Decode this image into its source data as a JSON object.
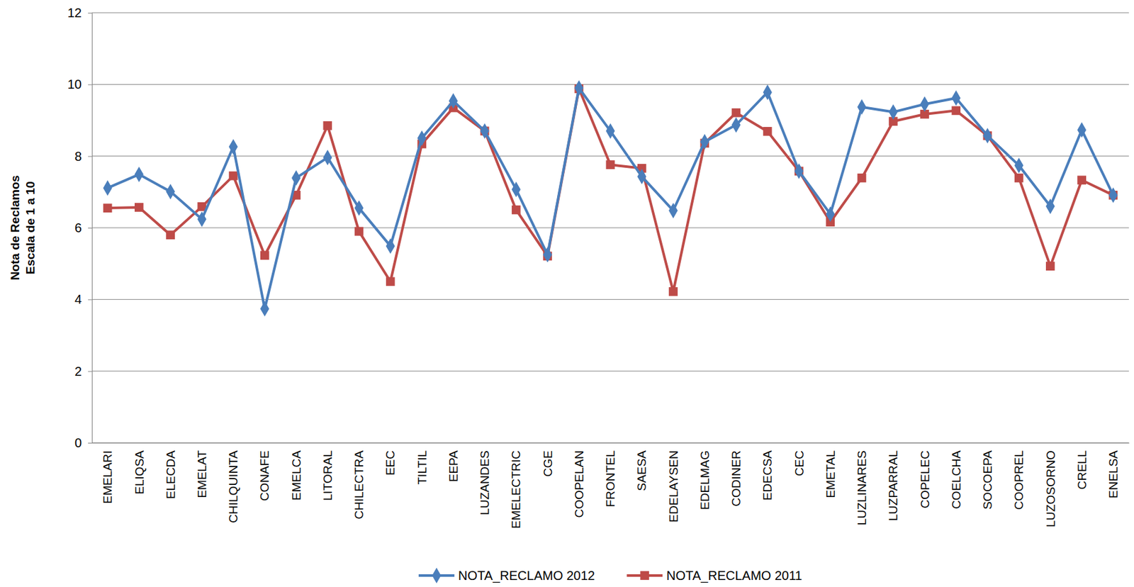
{
  "chart_data": {
    "type": "line",
    "y_label": [
      "Nota de Reclamos",
      "Escala de 1 a 10"
    ],
    "categories": [
      "EMELARI",
      "ELIQSA",
      "ELECDA",
      "EMELAT",
      "CHILQUINTA",
      "CONAFE",
      "EMELCA",
      "LITORAL",
      "CHILECTRA",
      "EEC",
      "TILTIL",
      "EEPA",
      "LUZANDES",
      "EMELECTRIC",
      "CGE",
      "COOPELAN",
      "FRONTEL",
      "SAESA",
      "EDELAYSEN",
      "EDELMAG",
      "CODINER",
      "EDECSA",
      "CEC",
      "EMETAL",
      "LUZLINARES",
      "LUZPARRAL",
      "COPELEC",
      "COELCHA",
      "SOCOEPA",
      "COOPREL",
      "LUZOSORNO",
      "CRELL",
      "ENELSA"
    ],
    "series": [
      {
        "name": "NOTA_RECLAMO 2012",
        "color": "#4a7ebb",
        "marker": "diamond",
        "values": [
          7.11,
          7.49,
          7.01,
          6.24,
          8.26,
          3.74,
          7.39,
          7.96,
          6.55,
          5.49,
          8.5,
          9.54,
          8.7,
          7.07,
          5.25,
          9.9,
          8.7,
          7.43,
          6.48,
          8.4,
          8.87,
          9.78,
          7.58,
          6.38,
          9.37,
          9.23,
          9.45,
          9.62,
          8.57,
          7.74,
          6.6,
          8.73,
          6.91
        ]
      },
      {
        "name": "NOTA_RECLAMO 2011",
        "color": "#be4b48",
        "marker": "square",
        "values": [
          6.55,
          6.57,
          5.8,
          6.59,
          7.45,
          5.23,
          6.91,
          8.85,
          5.9,
          4.5,
          8.34,
          9.35,
          8.7,
          6.5,
          5.21,
          9.88,
          7.76,
          7.66,
          4.22,
          8.36,
          9.21,
          8.69,
          7.58,
          6.16,
          7.39,
          8.97,
          9.17,
          9.27,
          8.57,
          7.39,
          4.93,
          7.33,
          6.91
        ]
      }
    ],
    "ylim": [
      0,
      12
    ],
    "yticks": [
      0,
      2,
      4,
      6,
      8,
      10,
      12
    ],
    "grid": true,
    "legend": "bottom"
  }
}
